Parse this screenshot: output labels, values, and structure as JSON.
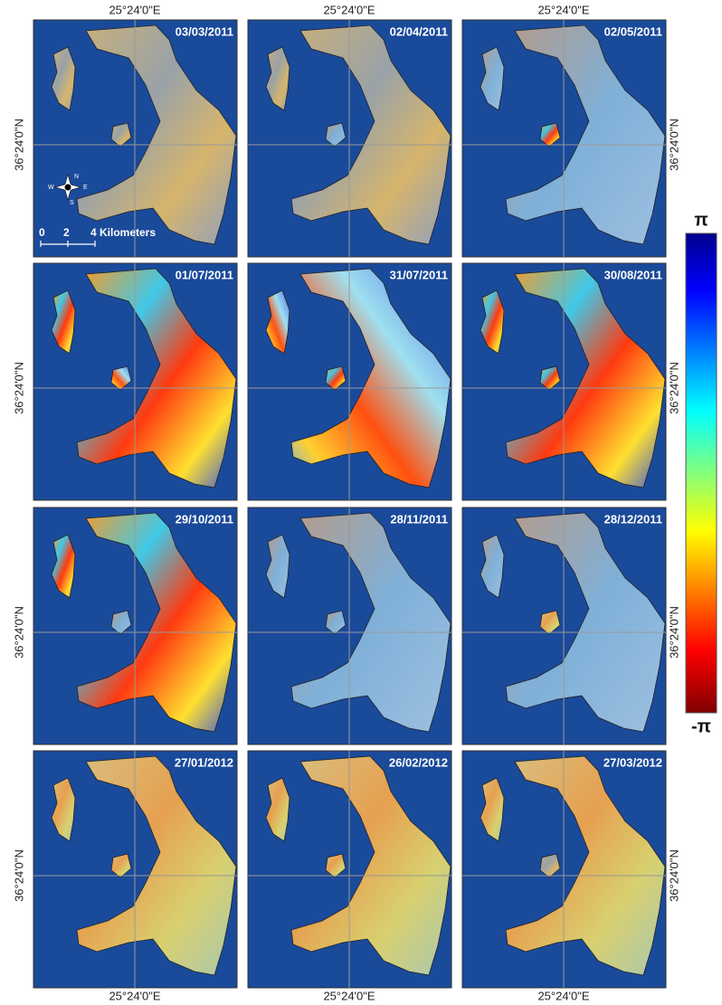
{
  "panels": [
    {
      "date": "03/03/2011"
    },
    {
      "date": "02/04/2011"
    },
    {
      "date": "02/05/2011"
    },
    {
      "date": "01/07/2011"
    },
    {
      "date": "31/07/2011"
    },
    {
      "date": "30/08/2011"
    },
    {
      "date": "29/10/2011"
    },
    {
      "date": "28/11/2011"
    },
    {
      "date": "28/12/2011"
    },
    {
      "date": "27/01/2012"
    },
    {
      "date": "26/02/2012"
    },
    {
      "date": "27/03/2012"
    }
  ],
  "axis_labels": {
    "longitude": "25°24'0\"E",
    "latitude": "36°24'0\"N"
  },
  "scale_bar": {
    "labels": [
      "0",
      "2",
      "4 Kilometers"
    ]
  },
  "compass": {
    "north": "N",
    "south": "S",
    "west": "W",
    "east": "E"
  },
  "colorbar": {
    "max": "π",
    "min": "-π"
  }
}
